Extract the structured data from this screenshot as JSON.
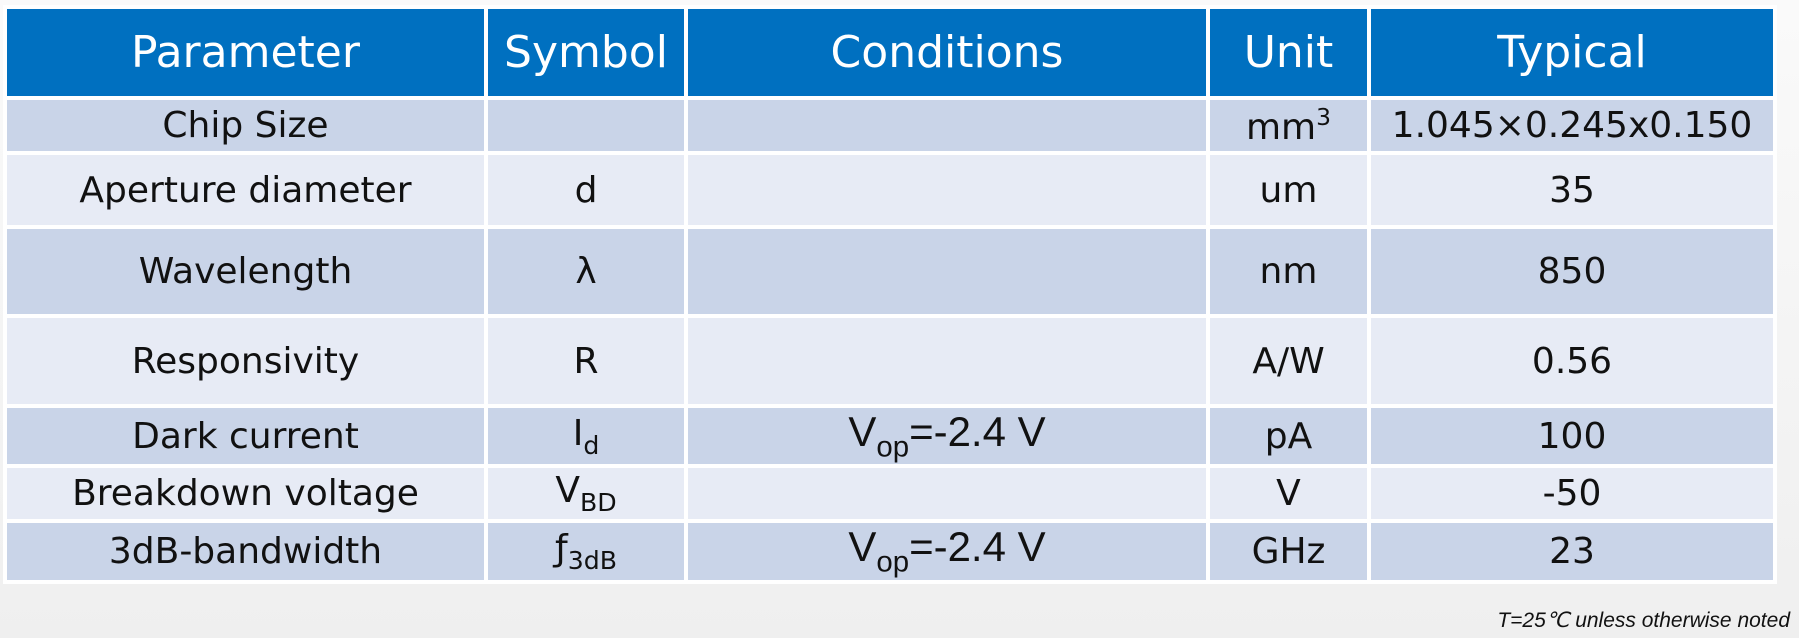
{
  "table": {
    "header": [
      "Parameter",
      "Symbol",
      "Conditions",
      "Unit",
      "Typical"
    ],
    "rows": [
      [
        "Chip Size",
        null,
        null,
        {
          "main": "mm",
          "sup": "3"
        },
        "1.045×0.245x0.150"
      ],
      [
        "Aperture diameter",
        "d",
        null,
        "um",
        "35"
      ],
      [
        "Wavelength",
        "λ",
        null,
        "nm",
        "850"
      ],
      [
        "Responsivity",
        "R",
        null,
        "A/W",
        "0.56"
      ],
      [
        "Dark current",
        {
          "main": "I",
          "sub": "d"
        },
        {
          "main": "V",
          "sub": "op",
          "rest": "=-2.4 V"
        },
        "pA",
        "100"
      ],
      [
        "Breakdown voltage",
        {
          "main": "V",
          "sub": "BD"
        },
        null,
        "V",
        "-50"
      ],
      [
        "3dB-bandwidth",
        {
          "main": "ƒ",
          "sub": "3dB"
        },
        {
          "main": "V",
          "sub": "op",
          "rest": "=-2.4 V"
        },
        "GHz",
        "23"
      ]
    ]
  },
  "footnote": "T=25℃ unless otherwise noted"
}
